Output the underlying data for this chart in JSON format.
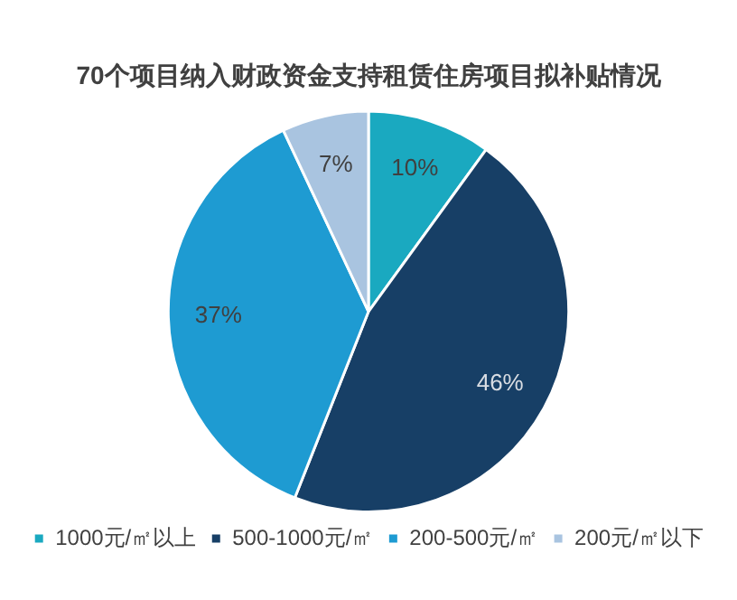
{
  "chart_data": {
    "type": "pie",
    "title": "70个项目纳入财政资金支持租赁住房项目拟补贴情况",
    "categories": [
      "1000元/㎡以上",
      "500-1000元/㎡",
      "200-500元/㎡",
      "200元/㎡以下"
    ],
    "values": [
      10,
      46,
      37,
      7
    ],
    "colors": [
      "#1aa9c0",
      "#173f66",
      "#1e9bd2",
      "#a9c4e0"
    ],
    "value_labels": [
      "10%",
      "46%",
      "37%",
      "7%"
    ],
    "legend": "bottom"
  }
}
